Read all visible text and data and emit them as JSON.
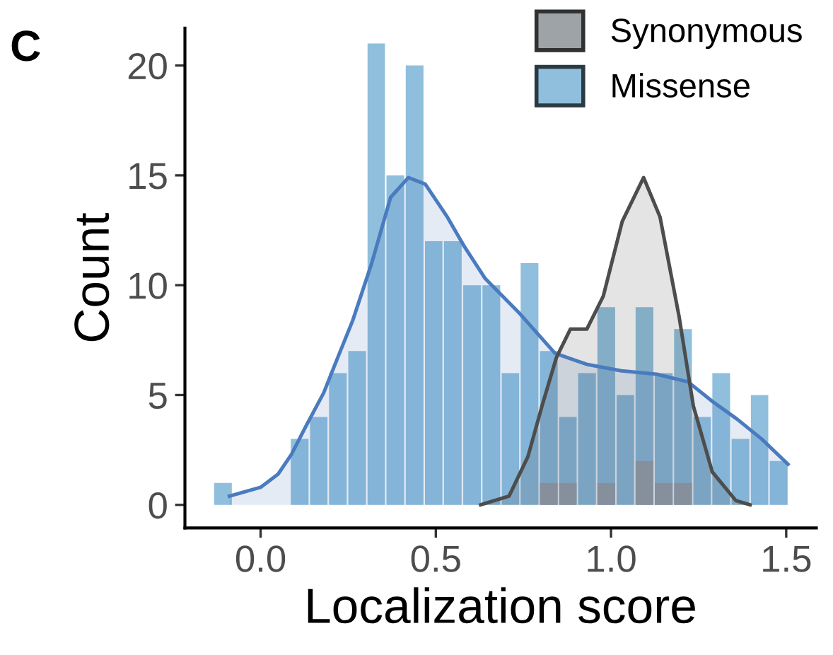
{
  "chart_data": {
    "type": "histogram",
    "xlabel": "Localization score",
    "ylabel": "Count",
    "annotations": [
      "C"
    ],
    "bins": [
      -0.135,
      -0.08,
      -0.026,
      0.029,
      0.084,
      0.139,
      0.193,
      0.248,
      0.303,
      0.357,
      0.412,
      0.467,
      0.521,
      0.576,
      0.631,
      0.686,
      0.74,
      0.795,
      0.85,
      0.904,
      0.959,
      1.014,
      1.068,
      1.123,
      1.178,
      1.233,
      1.287,
      1.342,
      1.397,
      1.451,
      1.506
    ],
    "series": [
      {
        "name": "Synonymous",
        "color": "#9ea3a8",
        "values": [
          0,
          0,
          0,
          0,
          0,
          0,
          0,
          0,
          0,
          0,
          0,
          0,
          0,
          0,
          0,
          0,
          0,
          1,
          1,
          0,
          1,
          0,
          2,
          1,
          1,
          0,
          0,
          0,
          0,
          0
        ]
      },
      {
        "name": "Missense",
        "color": "#8fbfdc",
        "values": [
          1,
          0,
          0,
          0,
          3,
          4,
          6,
          7,
          21,
          15,
          20,
          12,
          12,
          10,
          10,
          6,
          11,
          7,
          4,
          6,
          9,
          5,
          9,
          6,
          8,
          4,
          6,
          3,
          5,
          2
        ]
      },
      {
        "type": "area",
        "color": "#4a7bbf",
        "x": [
          -0.089,
          0.0,
          0.05,
          0.088,
          0.13,
          0.18,
          0.22,
          0.263,
          0.317,
          0.371,
          0.422,
          0.47,
          0.533,
          0.58,
          0.641,
          0.74,
          0.84,
          0.93,
          1.03,
          1.13,
          1.22,
          1.29,
          1.36,
          1.43,
          1.505
        ],
        "values": [
          0.4,
          0.8,
          1.4,
          2.3,
          3.6,
          5.1,
          6.7,
          8.4,
          11.0,
          14.0,
          14.9,
          14.6,
          13.1,
          11.8,
          10.3,
          8.7,
          6.9,
          6.4,
          6.1,
          5.95,
          5.6,
          4.7,
          3.9,
          3.0,
          1.85
        ]
      },
      {
        "type": "area",
        "color": "#4d4d4d",
        "x": [
          0.628,
          0.709,
          0.763,
          0.803,
          0.844,
          0.884,
          0.931,
          0.978,
          1.032,
          1.093,
          1.14,
          1.194,
          1.235,
          1.289,
          1.356,
          1.397
        ],
        "values": [
          0,
          0.4,
          2.2,
          4.5,
          6.7,
          8.0,
          8.0,
          9.5,
          12.9,
          14.9,
          13.1,
          8.6,
          4.5,
          1.5,
          0.2,
          0
        ]
      }
    ],
    "xlim": [
      -0.216,
      1.586
    ],
    "ylim": [
      -1.05,
      21.7
    ],
    "xticks": [
      {
        "value": 0,
        "label": "0.0"
      },
      {
        "value": 0.5,
        "label": "0.5"
      },
      {
        "value": 1,
        "label": "1.0"
      },
      {
        "value": 1.5,
        "label": "1.5"
      }
    ],
    "yticks": [
      0,
      5,
      10,
      15,
      20
    ],
    "legend": "top right",
    "grid": false
  }
}
